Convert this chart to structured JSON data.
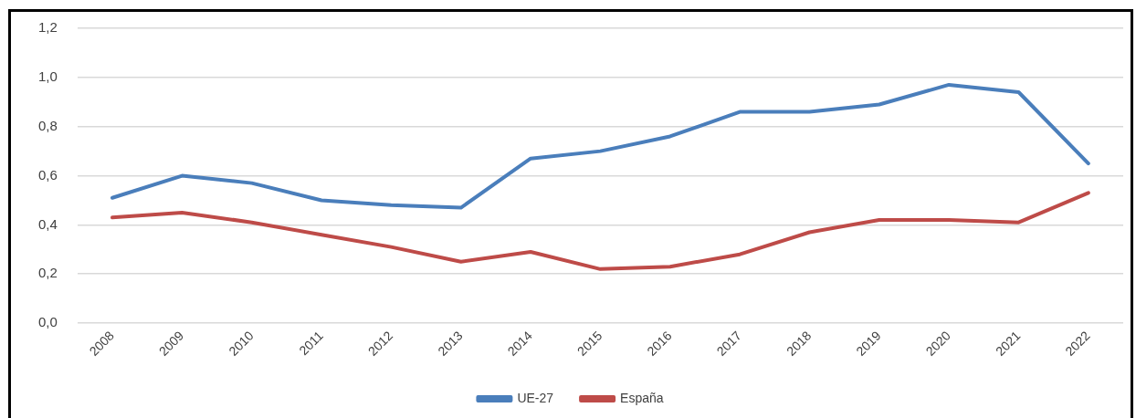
{
  "chart_data": {
    "type": "line",
    "categories": [
      "2008",
      "2009",
      "2010",
      "2011",
      "2012",
      "2013",
      "2014",
      "2015",
      "2016",
      "2017",
      "2018",
      "2019",
      "2020",
      "2021",
      "2022"
    ],
    "series": [
      {
        "name": "UE-27",
        "color": "#4a7ebb",
        "values": [
          0.51,
          0.6,
          0.57,
          0.5,
          0.48,
          0.47,
          0.67,
          0.7,
          0.76,
          0.86,
          0.86,
          0.89,
          0.97,
          0.94,
          0.65
        ]
      },
      {
        "name": "España",
        "color": "#be4b48",
        "values": [
          0.43,
          0.45,
          0.41,
          0.36,
          0.31,
          0.25,
          0.29,
          0.22,
          0.23,
          0.28,
          0.37,
          0.42,
          0.42,
          0.41,
          0.53
        ]
      }
    ],
    "ylim": [
      0,
      1.2
    ],
    "yticks": [
      {
        "value": 0,
        "label": "0,0"
      },
      {
        "value": 0.2,
        "label": "0,2"
      },
      {
        "value": 0.4,
        "label": "0,4"
      },
      {
        "value": 0.6,
        "label": "0,6"
      },
      {
        "value": 0.8,
        "label": "0,8"
      },
      {
        "value": 1,
        "label": "1,0"
      },
      {
        "value": 1.2,
        "label": "1,2"
      }
    ],
    "grid": "y",
    "legend": "bottom",
    "marker": "none",
    "line_style": "solid"
  }
}
